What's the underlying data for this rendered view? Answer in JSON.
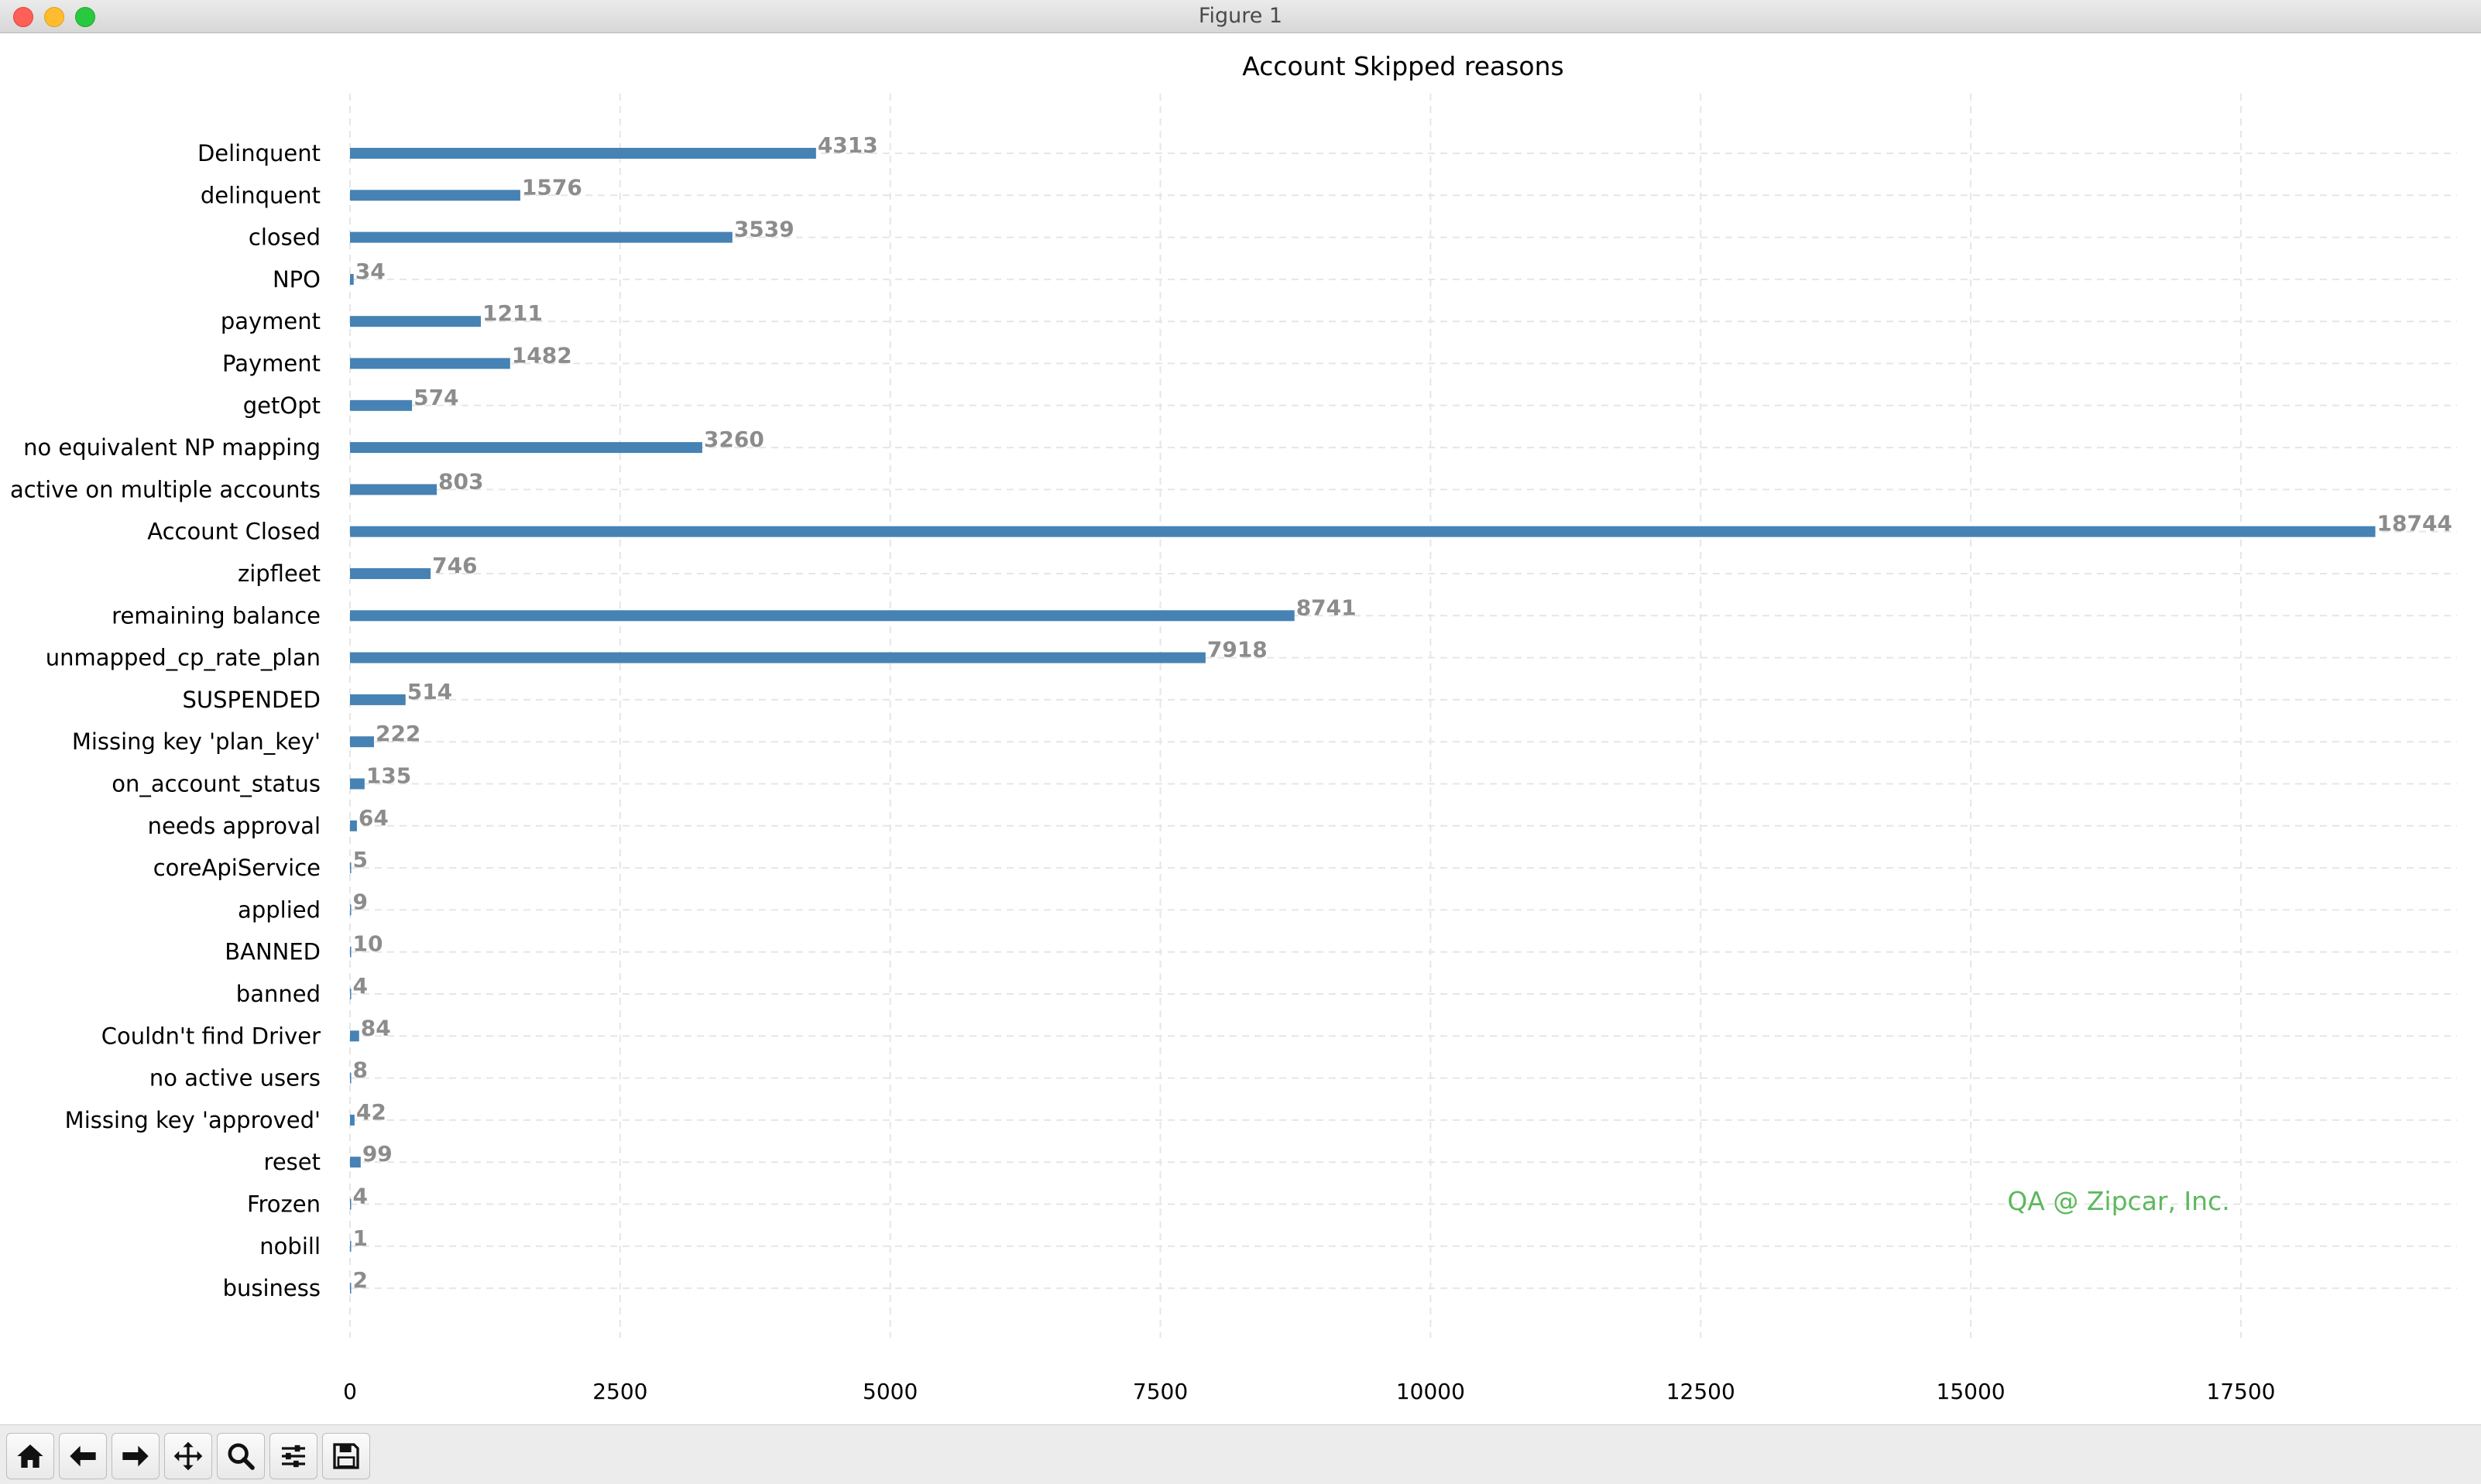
{
  "window": {
    "title": "Figure 1"
  },
  "toolbar": {
    "buttons": [
      "home-icon",
      "back-icon",
      "forward-icon",
      "pan-icon",
      "zoom-icon",
      "configure-subplots-icon",
      "save-icon"
    ]
  },
  "watermark": "QA @ Zipcar, Inc.",
  "colors": {
    "bar": "#4682b4",
    "value_label": "#8c8c8c",
    "watermark": "#5cb85c",
    "grid": "#e6e6e6"
  },
  "chart_data": {
    "type": "bar",
    "orientation": "horizontal",
    "title": "Account Skipped reasons",
    "xlabel": "",
    "ylabel": "",
    "xlim": [
      0,
      19500
    ],
    "xticks": [
      0,
      2500,
      5000,
      7500,
      10000,
      12500,
      15000,
      17500
    ],
    "grid": true,
    "categories": [
      "Delinquent",
      "delinquent",
      "closed",
      "NPO",
      "payment",
      "Payment",
      "getOpt",
      "no equivalent NP mapping",
      "active on multiple accounts",
      "Account Closed",
      "zipfleet",
      "remaining balance",
      "unmapped_cp_rate_plan",
      "SUSPENDED",
      "Missing key 'plan_key'",
      "on_account_status",
      "needs approval",
      "coreApiService",
      "applied",
      "BANNED",
      "banned",
      "Couldn't find Driver",
      "no active users",
      "Missing key 'approved'",
      "reset",
      "Frozen",
      "nobill",
      "business"
    ],
    "values": [
      4313,
      1576,
      3539,
      34,
      1211,
      1482,
      574,
      3260,
      803,
      18744,
      746,
      8741,
      7918,
      514,
      222,
      135,
      64,
      5,
      9,
      10,
      4,
      84,
      8,
      42,
      99,
      4,
      1,
      2
    ]
  }
}
